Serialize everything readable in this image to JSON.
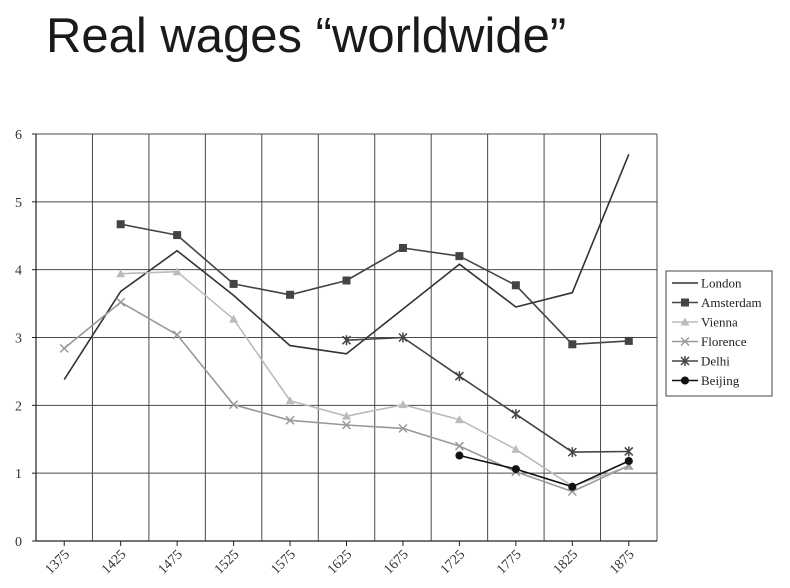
{
  "slide": {
    "title": "Real wages “worldwide”"
  },
  "chart_data": {
    "type": "line",
    "title": "",
    "xlabel": "",
    "ylabel": "",
    "x": [
      1375,
      1425,
      1475,
      1525,
      1575,
      1625,
      1675,
      1725,
      1775,
      1825,
      1875
    ],
    "x_tick_labels": [
      "1375",
      "1425",
      "1475",
      "1525",
      "1575",
      "1625",
      "1675",
      "1725",
      "1775",
      "1825",
      "1875"
    ],
    "y_ticks": [
      0,
      1,
      2,
      3,
      4,
      5,
      6
    ],
    "ylim": [
      0,
      6
    ],
    "grid": true,
    "legend_position": "right",
    "series": [
      {
        "name": "London",
        "marker": "none",
        "color": "#333333",
        "values": [
          2.38,
          3.68,
          4.28,
          3.62,
          2.88,
          2.76,
          3.42,
          4.08,
          3.45,
          3.66,
          5.7
        ]
      },
      {
        "name": "Amsterdam",
        "marker": "square",
        "color": "#444444",
        "values": [
          null,
          4.67,
          4.51,
          3.79,
          3.63,
          3.84,
          4.32,
          4.2,
          3.77,
          2.9,
          2.95
        ]
      },
      {
        "name": "Vienna",
        "marker": "triangle",
        "color": "#bbbbbb",
        "values": [
          null,
          3.94,
          3.97,
          3.27,
          2.07,
          1.84,
          2.01,
          1.79,
          1.35,
          0.81,
          1.1
        ]
      },
      {
        "name": "Florence",
        "marker": "x",
        "color": "#999999",
        "values": [
          2.84,
          3.52,
          3.04,
          2.01,
          1.78,
          1.71,
          1.66,
          1.4,
          1.02,
          0.73,
          1.11
        ]
      },
      {
        "name": "Delhi",
        "marker": "star",
        "color": "#444444",
        "values": [
          null,
          null,
          null,
          null,
          null,
          2.96,
          3.0,
          2.43,
          1.87,
          1.31,
          1.32
        ]
      },
      {
        "name": "Beijing",
        "marker": "circle",
        "color": "#111111",
        "values": [
          null,
          null,
          null,
          null,
          null,
          null,
          null,
          1.26,
          1.06,
          0.8,
          1.18
        ]
      }
    ]
  }
}
